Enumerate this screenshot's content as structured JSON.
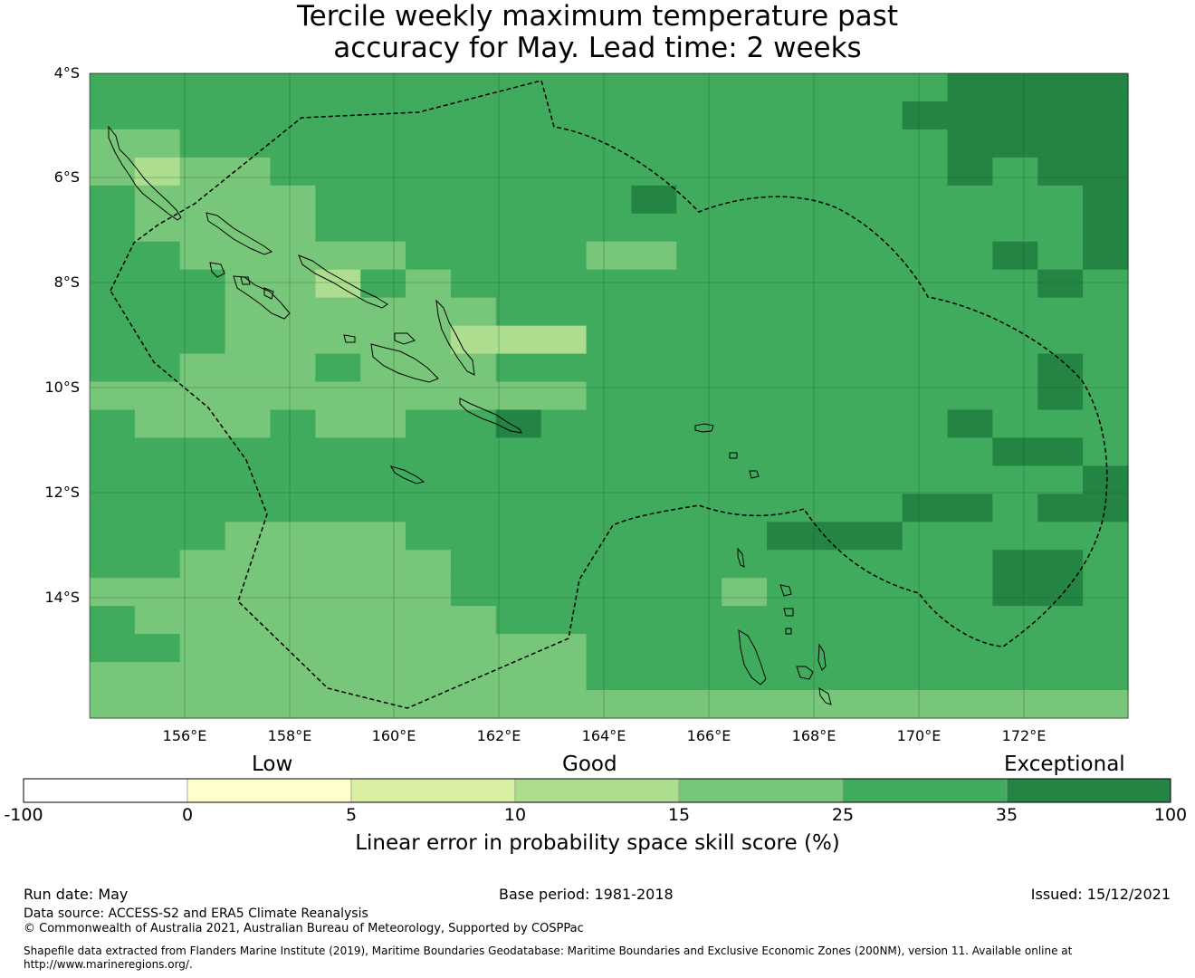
{
  "title_line1": "Tercile weekly maximum temperature past",
  "title_line2": "accuracy for May. Lead time: 2 weeks",
  "map": {
    "lon_range": [
      154.2,
      174.0
    ],
    "lat_range": [
      -16.3,
      -4.0
    ],
    "cell_size_deg": 0.8333,
    "lat_labels": [
      "4°S",
      "6°S",
      "8°S",
      "10°S",
      "12°S",
      "14°S"
    ],
    "lon_labels": [
      "156°E",
      "158°E",
      "160°E",
      "162°E",
      "164°E",
      "166°E",
      "168°E",
      "170°E",
      "172°E"
    ]
  },
  "colorbar": {
    "categories": [
      "Low",
      "Good",
      "Exceptional"
    ],
    "ticks": [
      "-100",
      "0",
      "5",
      "10",
      "15",
      "25",
      "35",
      "100"
    ],
    "title": "Linear error in probability space skill score (%)",
    "colors": [
      "#ffffff",
      "#ffffcc",
      "#d9f0a3",
      "#addd8e",
      "#78c679",
      "#41ab5d",
      "#238443"
    ]
  },
  "footer": {
    "run_date": "Run date: May",
    "base_period": "Base period: 1981-2018",
    "issued": "Issued: 15/12/2021",
    "data_source": "Data source: ACCESS-S2 and ERA5 Climate Reanalysis",
    "copyright": "© Commonwealth of Australia 2021, Australian Bureau of Meteorology, Supported by COSPPac",
    "shapefile": "Shapefile data extracted from Flanders Marine Institute (2019), Maritime Boundaries Geodatabase: Maritime Boundaries and Exclusive Economic Zones (200NM), version 11. Available online at http://www.marineregions.org/."
  }
}
